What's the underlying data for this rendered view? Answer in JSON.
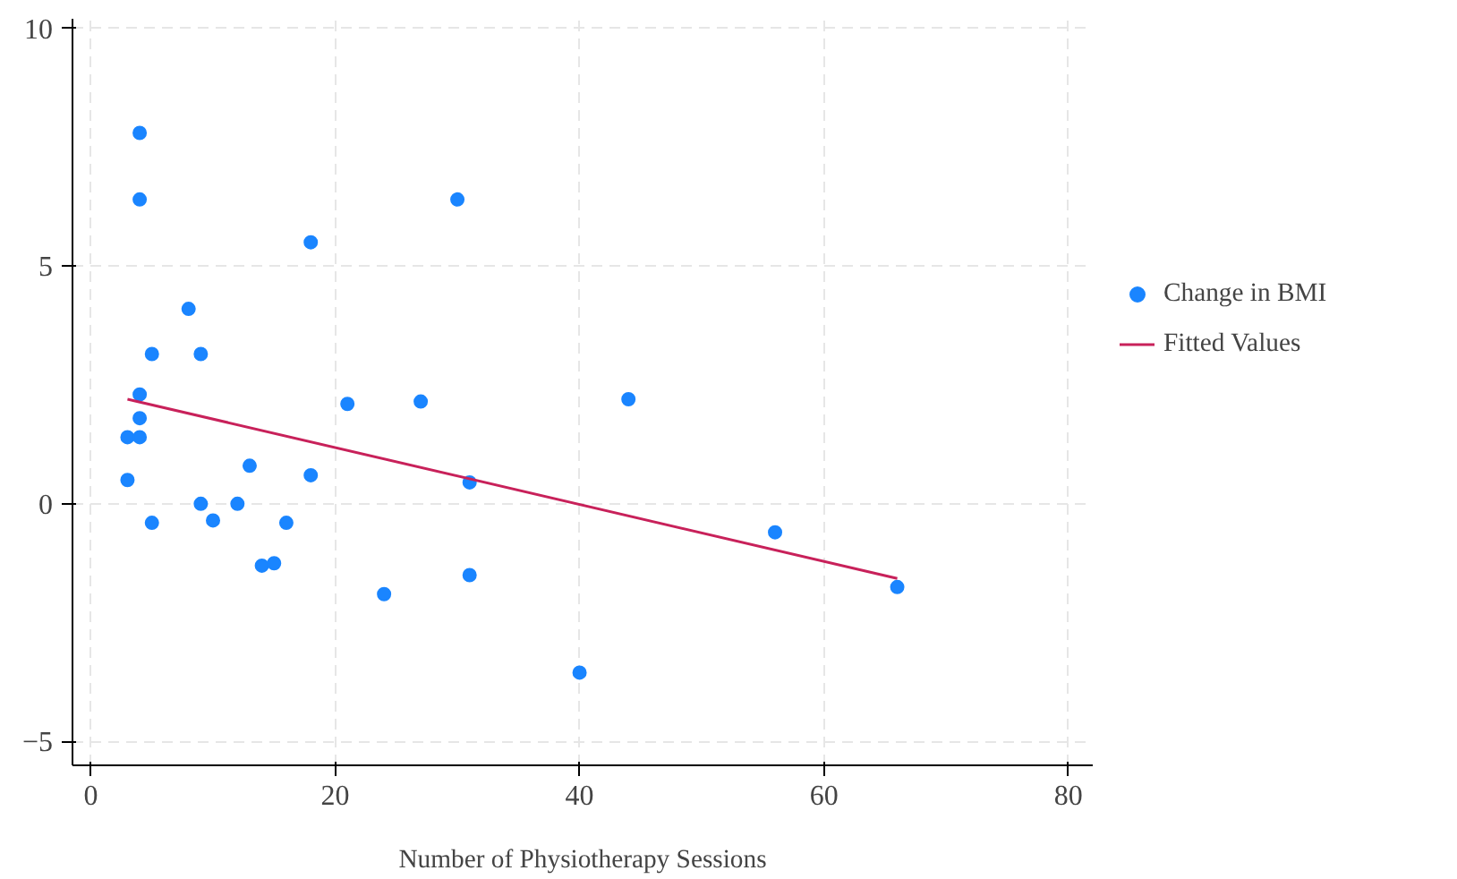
{
  "chart_data": {
    "type": "scatter",
    "xlabel": "Number of Physiotherapy Sessions",
    "xlim": [
      -1.5,
      82
    ],
    "ylim": [
      -5.5,
      10.2
    ],
    "xticks": [
      0,
      20,
      40,
      60,
      80
    ],
    "yticks": [
      -5,
      0,
      5,
      10
    ],
    "grid": true,
    "legend": "right",
    "series": [
      {
        "name": "Change in BMI",
        "marker": "circle",
        "color": "#1a85ff",
        "x": [
          3,
          3,
          4,
          4,
          4,
          4,
          4,
          5,
          5,
          8,
          9,
          9,
          10,
          12,
          13,
          14,
          15,
          16,
          18,
          18,
          21,
          24,
          27,
          30,
          31,
          31,
          40,
          44,
          56,
          66
        ],
        "values": [
          1.4,
          0.5,
          7.8,
          6.4,
          2.3,
          1.8,
          1.4,
          3.15,
          -0.4,
          4.1,
          3.15,
          0,
          -0.35,
          0,
          0.8,
          -1.3,
          -1.25,
          -0.4,
          5.5,
          0.6,
          2.1,
          -1.9,
          2.15,
          6.4,
          0.45,
          -1.5,
          -3.55,
          2.2,
          -0.6,
          -1.75
        ]
      },
      {
        "name": "Fitted Values",
        "type": "line",
        "color": "#c8215a",
        "x": [
          3,
          66
        ],
        "values": [
          2.2,
          -1.57
        ],
        "line_style": "solid"
      }
    ]
  }
}
